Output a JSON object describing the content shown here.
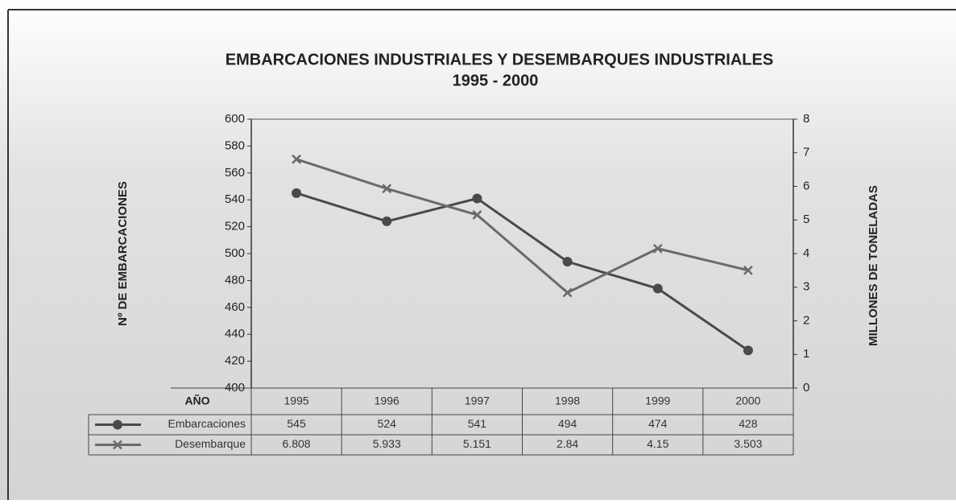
{
  "chart_data": {
    "type": "line",
    "title": "EMBARCACIONES INDUSTRIALES Y DESEMBARQUES INDUSTRIALES",
    "subtitle": "1995 - 2000",
    "y_label": "Nº DE EMBARCACIONES",
    "y2_label": "MILLONES DE TONELADAS",
    "table_header": "AÑO",
    "categories": [
      "1995",
      "1996",
      "1997",
      "1998",
      "1999",
      "2000"
    ],
    "ylim": [
      400,
      600
    ],
    "yticks": [
      400,
      420,
      440,
      460,
      480,
      500,
      520,
      540,
      560,
      580,
      600
    ],
    "y2lim": [
      0,
      8
    ],
    "y2ticks": [
      0,
      1,
      2,
      3,
      4,
      5,
      6,
      7,
      8
    ],
    "series": [
      {
        "name": "Embarcaciones",
        "color": "#4a4a4a",
        "marker": "circle",
        "values": [
          545,
          524,
          541,
          494,
          474,
          428
        ]
      },
      {
        "name": "Desembarque",
        "color": "#6a6a6a",
        "marker": "cross",
        "axis": "y2",
        "values": [
          6.808,
          5.933,
          5.151,
          2.84,
          4.15,
          3.503
        ]
      }
    ]
  }
}
